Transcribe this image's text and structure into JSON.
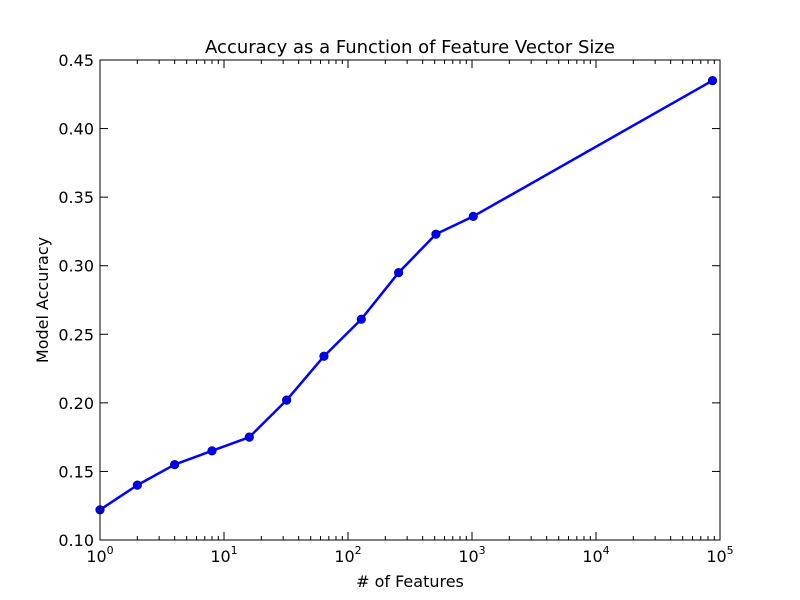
{
  "chart_data": {
    "type": "line",
    "title": "Accuracy as a Function of Feature Vector Size",
    "xlabel": "# of Features",
    "ylabel": "Model Accuracy",
    "x_scale": "log",
    "xlim": [
      1,
      100000
    ],
    "ylim": [
      0.1,
      0.45
    ],
    "x_ticks": [
      {
        "value": 1,
        "base": "10",
        "exp": "0"
      },
      {
        "value": 10,
        "base": "10",
        "exp": "1"
      },
      {
        "value": 100,
        "base": "10",
        "exp": "2"
      },
      {
        "value": 1000,
        "base": "10",
        "exp": "3"
      },
      {
        "value": 10000,
        "base": "10",
        "exp": "4"
      },
      {
        "value": 100000,
        "base": "10",
        "exp": "5"
      }
    ],
    "y_ticks": [
      "0.10",
      "0.15",
      "0.20",
      "0.25",
      "0.30",
      "0.35",
      "0.40",
      "0.45"
    ],
    "grid": false,
    "series": [
      {
        "color": "#0000ff",
        "x": [
          1,
          2,
          4,
          8,
          16,
          32,
          64,
          128,
          256,
          512,
          1024,
          87000
        ],
        "y": [
          0.122,
          0.14,
          0.155,
          0.165,
          0.175,
          0.202,
          0.234,
          0.261,
          0.295,
          0.323,
          0.336,
          0.435
        ]
      }
    ]
  }
}
